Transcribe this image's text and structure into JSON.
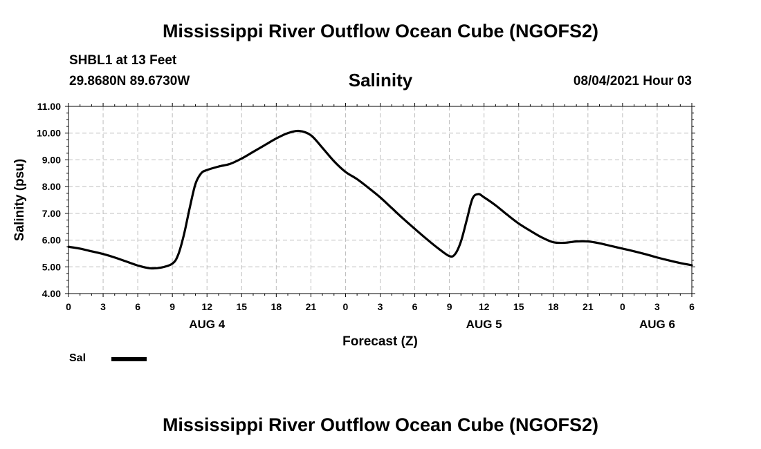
{
  "header": {
    "title": "Mississippi River Outflow Ocean Cube (NGOFS2)",
    "station": "SHBL1 at 13 Feet",
    "coordinates": "29.8680N  89.6730W",
    "subtitle": "Salinity",
    "datetime": "08/04/2021 Hour 03"
  },
  "footer": {
    "title": "Mississippi River Outflow Ocean Cube (NGOFS2)"
  },
  "legend": {
    "label": "Sal"
  },
  "chart_data": {
    "type": "line",
    "title": "Salinity",
    "xlabel": "Forecast (Z)",
    "ylabel": "Salinity (psu)",
    "xlim": [
      0,
      54
    ],
    "ylim": [
      4.0,
      11.0
    ],
    "grid": true,
    "x_tick_values": [
      0,
      3,
      6,
      9,
      12,
      15,
      18,
      21,
      24,
      27,
      30,
      33,
      36,
      39,
      42,
      45,
      48,
      51,
      54
    ],
    "x_tick_labels": [
      "0",
      "3",
      "6",
      "9",
      "12",
      "15",
      "18",
      "21",
      "0",
      "3",
      "6",
      "9",
      "12",
      "15",
      "18",
      "21",
      "0",
      "3",
      "6"
    ],
    "y_ticks": [
      4.0,
      5.0,
      6.0,
      7.0,
      8.0,
      9.0,
      10.0,
      11.0
    ],
    "y_tick_labels": [
      "4.00",
      "5.00",
      "6.00",
      "7.00",
      "8.00",
      "9.00",
      "10.00",
      "11.00"
    ],
    "date_labels": [
      {
        "x": 12,
        "label": "AUG 4"
      },
      {
        "x": 36,
        "label": "AUG 5"
      },
      {
        "x": 51,
        "label": "AUG 6"
      }
    ],
    "series": [
      {
        "name": "Sal",
        "color": "#000000",
        "x": [
          0,
          1,
          2,
          3,
          4,
          5,
          6,
          7,
          8,
          9,
          9.5,
          10,
          10.5,
          11,
          11.5,
          12,
          13,
          14,
          15,
          16,
          17,
          18,
          19,
          20,
          21,
          22,
          23,
          24,
          25,
          26,
          27,
          28,
          29,
          30,
          31,
          32,
          33,
          33.5,
          34,
          34.5,
          35,
          35.5,
          36,
          37,
          38,
          39,
          40,
          41,
          42,
          43,
          44,
          45,
          46,
          47,
          48,
          49,
          50,
          51,
          52,
          53,
          54
        ],
        "values": [
          5.75,
          5.68,
          5.58,
          5.48,
          5.35,
          5.2,
          5.05,
          4.95,
          4.97,
          5.12,
          5.45,
          6.2,
          7.2,
          8.1,
          8.5,
          8.62,
          8.75,
          8.85,
          9.05,
          9.3,
          9.55,
          9.8,
          10.0,
          10.08,
          9.92,
          9.45,
          8.95,
          8.55,
          8.28,
          7.95,
          7.6,
          7.2,
          6.8,
          6.42,
          6.05,
          5.7,
          5.4,
          5.48,
          5.95,
          6.75,
          7.55,
          7.72,
          7.6,
          7.3,
          6.95,
          6.62,
          6.35,
          6.1,
          5.92,
          5.9,
          5.95,
          5.95,
          5.88,
          5.78,
          5.68,
          5.58,
          5.47,
          5.35,
          5.24,
          5.14,
          5.06
        ]
      }
    ]
  }
}
